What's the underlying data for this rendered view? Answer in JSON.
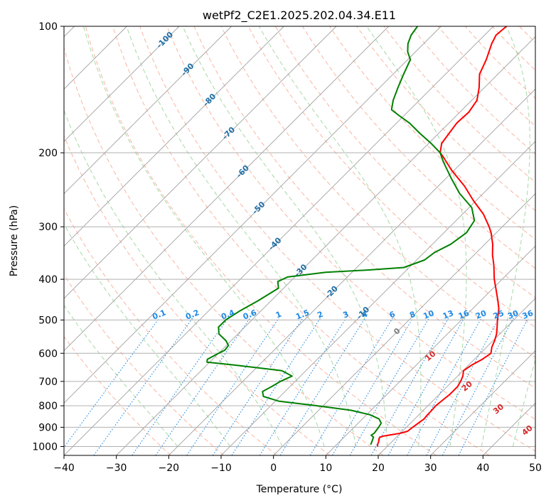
{
  "chart_data": {
    "type": "line",
    "title": "wetPf2_C2E1.2025.202.04.34.E11",
    "xlabel": "Temperature (°C)",
    "ylabel": "Pressure (hPa)",
    "xlim": [
      -40,
      50
    ],
    "ylim": [
      1050,
      100
    ],
    "y_scale": "log",
    "grid": true,
    "x_ticks": [
      "−40",
      "−30",
      "−20",
      "−10",
      "0",
      "10",
      "20",
      "30",
      "40",
      "50"
    ],
    "x_tick_values": [
      -40,
      -30,
      -20,
      -10,
      0,
      10,
      20,
      30,
      40,
      50
    ],
    "y_ticks": [
      "100",
      "200",
      "300",
      "400",
      "500",
      "600",
      "700",
      "800",
      "900",
      "1000"
    ],
    "y_tick_values": [
      100,
      200,
      300,
      400,
      500,
      600,
      700,
      800,
      900,
      1000
    ],
    "skew": "45-degree skewed temperature axis",
    "colors": {
      "temperature": "#ff0000",
      "dewpoint": "#008000",
      "isotherm": "#a0a0a0",
      "dry_adiabat": "#f7a389",
      "moist_adiabat": "#8fcf8f",
      "mixing_ratio": "#1e88e5",
      "isotherm_label": "#1f6fa8",
      "dry_adiabat_label": "#d62728",
      "zero_label": "#808080"
    },
    "series": [
      {
        "role": "temperature",
        "points": [
          [
            1000,
            18.2
          ],
          [
            990,
            17.8
          ],
          [
            975,
            17.5
          ],
          [
            960,
            17.0
          ],
          [
            950,
            16.8
          ],
          [
            945,
            17.3
          ],
          [
            938,
            18.5
          ],
          [
            930,
            20.0
          ],
          [
            920,
            21.0
          ],
          [
            900,
            21.2
          ],
          [
            880,
            21.5
          ],
          [
            860,
            21.8
          ],
          [
            850,
            21.7
          ],
          [
            820,
            21.6
          ],
          [
            800,
            21.5
          ],
          [
            780,
            21.7
          ],
          [
            750,
            22.0
          ],
          [
            720,
            22.0
          ],
          [
            700,
            21.6
          ],
          [
            680,
            21.0
          ],
          [
            660,
            20.1
          ],
          [
            640,
            20.6
          ],
          [
            620,
            21.5
          ],
          [
            600,
            22.0
          ],
          [
            580,
            21.0
          ],
          [
            560,
            20.3
          ],
          [
            540,
            19.4
          ],
          [
            520,
            18.2
          ],
          [
            500,
            16.9
          ],
          [
            470,
            15.0
          ],
          [
            450,
            13.3
          ],
          [
            420,
            10.5
          ],
          [
            400,
            8.5
          ],
          [
            370,
            5.7
          ],
          [
            350,
            3.5
          ],
          [
            330,
            1.5
          ],
          [
            310,
            -1.0
          ],
          [
            300,
            -2.5
          ],
          [
            280,
            -6.0
          ],
          [
            260,
            -10.5
          ],
          [
            240,
            -15.0
          ],
          [
            220,
            -20.5
          ],
          [
            205,
            -24.5
          ],
          [
            200,
            -26.0
          ],
          [
            190,
            -27.5
          ],
          [
            180,
            -28.0
          ],
          [
            170,
            -28.5
          ],
          [
            160,
            -28.3
          ],
          [
            150,
            -29.0
          ],
          [
            140,
            -31.0
          ],
          [
            130,
            -33.5
          ],
          [
            120,
            -35.0
          ],
          [
            110,
            -37.0
          ],
          [
            105,
            -37.8
          ],
          [
            100,
            -37.5
          ]
        ]
      },
      {
        "role": "dewpoint",
        "points": [
          [
            990,
            16.5
          ],
          [
            975,
            16.2
          ],
          [
            950,
            15.6
          ],
          [
            940,
            14.8
          ],
          [
            930,
            15.0
          ],
          [
            920,
            14.9
          ],
          [
            900,
            14.7
          ],
          [
            880,
            14.4
          ],
          [
            860,
            13.2
          ],
          [
            840,
            10.6
          ],
          [
            820,
            6.2
          ],
          [
            800,
            -1.2
          ],
          [
            780,
            -9.4
          ],
          [
            760,
            -13.2
          ],
          [
            740,
            -14.3
          ],
          [
            720,
            -13.5
          ],
          [
            700,
            -12.8
          ],
          [
            680,
            -11.6
          ],
          [
            660,
            -14.6
          ],
          [
            640,
            -24.8
          ],
          [
            630,
            -30.5
          ],
          [
            620,
            -31.0
          ],
          [
            600,
            -30.0
          ],
          [
            590,
            -29.4
          ],
          [
            575,
            -29.6
          ],
          [
            560,
            -31.0
          ],
          [
            540,
            -33.6
          ],
          [
            520,
            -35.0
          ],
          [
            500,
            -35.0
          ],
          [
            475,
            -34.0
          ],
          [
            450,
            -32.5
          ],
          [
            420,
            -31.0
          ],
          [
            405,
            -32.4
          ],
          [
            395,
            -31.4
          ],
          [
            385,
            -25.0
          ],
          [
            380,
            -17.0
          ],
          [
            375,
            -11.0
          ],
          [
            360,
            -8.5
          ],
          [
            345,
            -8.0
          ],
          [
            330,
            -6.5
          ],
          [
            310,
            -5.7
          ],
          [
            290,
            -6.5
          ],
          [
            270,
            -9.5
          ],
          [
            250,
            -14.5
          ],
          [
            230,
            -19.0
          ],
          [
            220,
            -21.3
          ],
          [
            210,
            -23.7
          ],
          [
            200,
            -26.0
          ],
          [
            190,
            -29.5
          ],
          [
            180,
            -33.5
          ],
          [
            170,
            -37.5
          ],
          [
            163,
            -41.0
          ],
          [
            158,
            -43.5
          ],
          [
            150,
            -45.0
          ],
          [
            140,
            -46.5
          ],
          [
            130,
            -48.0
          ],
          [
            120,
            -49.5
          ],
          [
            115,
            -51.5
          ],
          [
            110,
            -53.0
          ],
          [
            105,
            -54.0
          ],
          [
            100,
            -54.5
          ]
        ]
      }
    ],
    "isotherm_labels": [
      "-100",
      "-90",
      "-80",
      "-70",
      "-60",
      "-50",
      "-40",
      "-30",
      "-20",
      "-10",
      "0"
    ],
    "isotherm_label_values": [
      -100,
      -90,
      -80,
      -70,
      -60,
      -50,
      -40,
      -30,
      -20,
      -10,
      0
    ],
    "mixing_ratio_labels": [
      "0.1",
      "0.2",
      "0.4",
      "0.6",
      "1",
      "1.5",
      "2",
      "3",
      "4",
      "6",
      "8",
      "10",
      "13",
      "16",
      "20",
      "25",
      "30",
      "36"
    ],
    "mixing_ratio_values": [
      0.1,
      0.2,
      0.4,
      0.6,
      1,
      1.5,
      2,
      3,
      4,
      6,
      8,
      10,
      13,
      16,
      20,
      25,
      30,
      36
    ],
    "dry_adiabat_labels": [
      "10",
      "20",
      "30",
      "40"
    ],
    "dry_adiabat_label_values": [
      10,
      20,
      30,
      40
    ]
  }
}
